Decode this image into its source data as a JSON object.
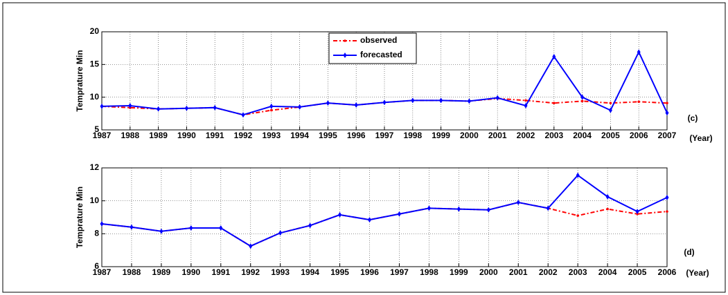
{
  "chart_data": [
    {
      "type": "line",
      "y_label": "Temprature Min",
      "panel_label": "(c)",
      "x_unit_label": "(Year)",
      "x": [
        1987,
        1988,
        1989,
        1990,
        1991,
        1992,
        1993,
        1994,
        1995,
        1996,
        1997,
        1998,
        1999,
        2000,
        2001,
        2002,
        2003,
        2004,
        2005,
        2006,
        2007
      ],
      "xlim": [
        1987,
        2007
      ],
      "xticks": [
        1987,
        1988,
        1989,
        1990,
        1991,
        1992,
        1993,
        1994,
        1995,
        1996,
        1997,
        1998,
        1999,
        2000,
        2001,
        2002,
        2003,
        2004,
        2005,
        2006,
        2007
      ],
      "ylim": [
        5,
        20
      ],
      "yticks": [
        5,
        10,
        15,
        20
      ],
      "grid": true,
      "legend": "top",
      "series": [
        {
          "name": "observed",
          "color": "#ff0000",
          "style": "dashed",
          "values": [
            8.6,
            8.4,
            8.2,
            8.3,
            8.4,
            7.3,
            8.0,
            8.5,
            9.1,
            8.8,
            9.2,
            9.5,
            9.5,
            9.4,
            9.8,
            9.5,
            9.1,
            9.4,
            9.1,
            9.3,
            9.1
          ]
        },
        {
          "name": "forecasted",
          "color": "#0000ff",
          "style": "solid",
          "values": [
            8.6,
            8.7,
            8.2,
            8.3,
            8.4,
            7.3,
            8.6,
            8.5,
            9.1,
            8.8,
            9.2,
            9.5,
            9.5,
            9.4,
            9.9,
            8.7,
            16.2,
            10.0,
            8.0,
            16.9,
            7.6
          ]
        }
      ]
    },
    {
      "type": "line",
      "y_label": "Temprature Min",
      "panel_label": "(d)",
      "x_unit_label": "(Year)",
      "x": [
        1987,
        1988,
        1989,
        1990,
        1991,
        1992,
        1993,
        1994,
        1995,
        1996,
        1997,
        1998,
        1999,
        2000,
        2001,
        2002,
        2003,
        2004,
        2005,
        2006
      ],
      "xlim": [
        1987,
        2006
      ],
      "xticks": [
        1987,
        1988,
        1989,
        1990,
        1991,
        1992,
        1993,
        1994,
        1995,
        1996,
        1997,
        1998,
        1999,
        2000,
        2001,
        2002,
        2003,
        2004,
        2005,
        2006
      ],
      "ylim": [
        6,
        12
      ],
      "yticks": [
        6,
        8,
        10,
        12
      ],
      "grid": true,
      "series": [
        {
          "color": "#ff0000",
          "style": "dashed",
          "values": [
            8.6,
            8.4,
            8.15,
            8.35,
            8.35,
            7.25,
            8.05,
            8.5,
            9.15,
            8.85,
            9.2,
            9.55,
            9.5,
            9.45,
            9.9,
            9.55,
            9.1,
            9.5,
            9.2,
            9.35
          ]
        },
        {
          "color": "#0000ff",
          "style": "solid",
          "values": [
            8.6,
            8.4,
            8.15,
            8.35,
            8.35,
            7.25,
            8.05,
            8.5,
            9.15,
            8.85,
            9.2,
            9.55,
            9.5,
            9.45,
            9.9,
            9.55,
            11.55,
            10.25,
            9.35,
            10.2
          ]
        }
      ]
    }
  ]
}
